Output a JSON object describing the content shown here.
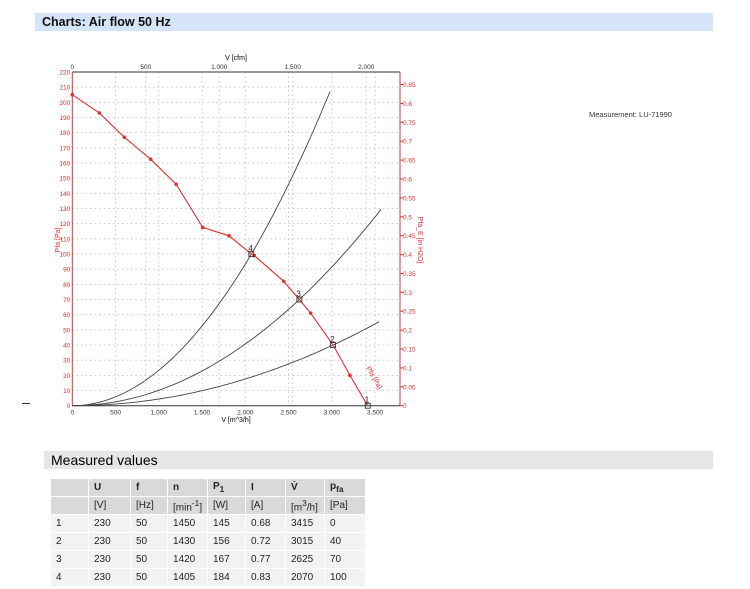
{
  "header": {
    "title": "Charts: Air flow 50 Hz"
  },
  "measurement": "Measurement: LU-71990",
  "measured_section": {
    "title": "Measured values"
  },
  "table": {
    "headers": [
      "",
      "U",
      "f",
      "n",
      "P1",
      "I",
      "V̇",
      "pfa"
    ],
    "units": [
      "",
      "[V]",
      "[Hz]",
      "[min-1]",
      "[W]",
      "[A]",
      "[m3/h]",
      "[Pa]"
    ],
    "rows": [
      [
        "1",
        "230",
        "50",
        "1450",
        "145",
        "0.68",
        "3415",
        "0"
      ],
      [
        "2",
        "230",
        "50",
        "1430",
        "156",
        "0.72",
        "3015",
        "40"
      ],
      [
        "3",
        "230",
        "50",
        "1420",
        "167",
        "0.77",
        "2625",
        "70"
      ],
      [
        "4",
        "230",
        "50",
        "1405",
        "184",
        "0.83",
        "2070",
        "100"
      ]
    ]
  },
  "chart_data": {
    "type": "line",
    "xlabel": "V [m^3/h]",
    "x2label": "V [cfm]",
    "ylabel": "Pfa [Pa]",
    "y2label": "Pfa_E [in H2O]",
    "xlim": [
      0,
      3790
    ],
    "ylim": [
      0,
      220
    ],
    "xticks": [
      "0",
      "500",
      "1.000",
      "1.500",
      "2.000",
      "2.500",
      "3.000",
      "3.500"
    ],
    "x2ticks": [
      "0",
      "500",
      "1.000",
      "1.500",
      "2.000"
    ],
    "yticks": [
      "0",
      "10",
      "20",
      "30",
      "40",
      "50",
      "60",
      "70",
      "80",
      "90",
      "100",
      "110",
      "120",
      "130",
      "140",
      "150",
      "160",
      "170",
      "180",
      "190",
      "200",
      "210",
      "220"
    ],
    "y2ticks": [
      "0",
      "0.05",
      "0.1",
      "0.15",
      "0.2",
      "0.25",
      "0.3",
      "0.35",
      "0.4",
      "0.45",
      "0.5",
      "0.55",
      "0.6",
      "0.65",
      "0.7",
      "0.75",
      "0.8",
      "0.85"
    ],
    "grid": true,
    "colors": {
      "fan": "#e03030",
      "system": "#444444"
    },
    "fan_curve": {
      "label": "Pfa [Pa]",
      "x": [
        0,
        312,
        601,
        906,
        1200,
        1508,
        1812,
        2070,
        2104,
        2444,
        2625,
        2756,
        3015,
        3210,
        3415
      ],
      "y": [
        205,
        193,
        177,
        162.5,
        146,
        117.5,
        112,
        100,
        99,
        82,
        70,
        61,
        40,
        20,
        0
      ]
    },
    "system_curves": [
      {
        "point": "2",
        "x_end": 3546,
        "y_end": 55
      },
      {
        "point": "3",
        "x_end": 3570,
        "y_end": 130
      },
      {
        "point": "4",
        "x_end": 2979,
        "y_end": 207
      }
    ],
    "operating_points": [
      {
        "label": "1",
        "x": 3415,
        "y": 0
      },
      {
        "label": "2",
        "x": 3015,
        "y": 40
      },
      {
        "label": "3",
        "x": 2625,
        "y": 70
      },
      {
        "label": "4",
        "x": 2070,
        "y": 100
      }
    ]
  }
}
